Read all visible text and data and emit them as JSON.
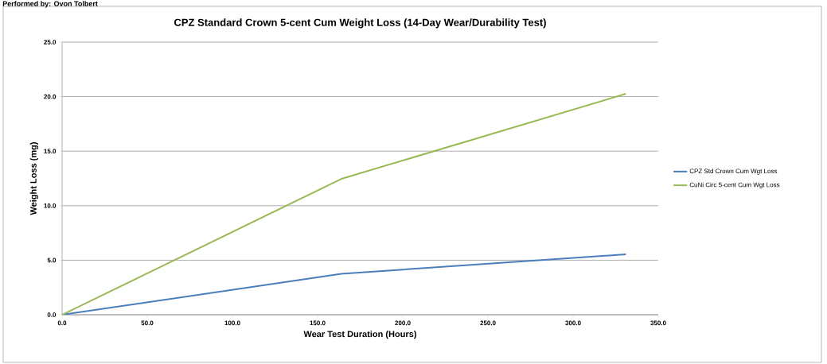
{
  "chart_data": {
    "type": "line",
    "title": "CPZ Standard Crown 5-cent Cum Weight Loss (14-Day Wear/Durability Test)",
    "xlabel": "Wear Test Duration (Hours)",
    "ylabel": "Weight Loss (mg)",
    "annotations": [
      "Performed by: Ovon Tolbert"
    ],
    "x": [
      0,
      164,
      331
    ],
    "series": [
      {
        "name": "CPZ Std Crown Cum Wgt Loss",
        "color": "#4a7ebb",
        "values": [
          0,
          3.75,
          5.54
        ]
      },
      {
        "name": "CuNi Circ 5-cent Cum Wgt Loss",
        "color": "#98b954",
        "values": [
          0,
          12.46,
          20.26
        ]
      }
    ],
    "xlim": [
      0,
      350
    ],
    "ylim": [
      0,
      25
    ],
    "xticks": [
      {
        "value": 0,
        "label": "0.0"
      },
      {
        "value": 50,
        "label": "50.0"
      },
      {
        "value": 100,
        "label": "100.0"
      },
      {
        "value": 150,
        "label": "150.0"
      },
      {
        "value": 200,
        "label": "200.0"
      },
      {
        "value": 250,
        "label": "250.0"
      },
      {
        "value": 300,
        "label": "300.0"
      },
      {
        "value": 350,
        "label": "350.0"
      }
    ],
    "yticks": [
      {
        "value": 0,
        "label": "0.0"
      },
      {
        "value": 5,
        "label": "5.0"
      },
      {
        "value": 10,
        "label": "10.0"
      },
      {
        "value": 15,
        "label": "15.0"
      },
      {
        "value": 20,
        "label": "20.0"
      },
      {
        "value": 25,
        "label": "25.0"
      }
    ],
    "grid": "y",
    "legend": "right",
    "marker": "none",
    "line_style": "solid"
  }
}
